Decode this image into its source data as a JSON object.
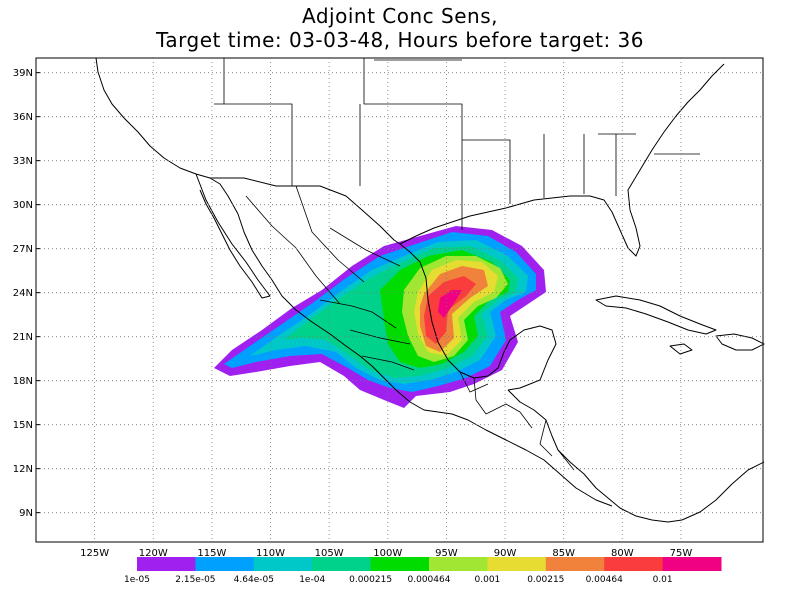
{
  "title": {
    "line1": "Adjoint Conc Sens,",
    "line2": "Target time: 03-03-48, Hours before target: 36"
  },
  "map": {
    "lon_range": [
      -130,
      -68
    ],
    "lat_range": [
      7,
      40
    ],
    "lat_ticks": [
      {
        "value": 39,
        "label": "39N"
      },
      {
        "value": 36,
        "label": "36N"
      },
      {
        "value": 33,
        "label": "33N"
      },
      {
        "value": 30,
        "label": "30N"
      },
      {
        "value": 27,
        "label": "27N"
      },
      {
        "value": 24,
        "label": "24N"
      },
      {
        "value": 21,
        "label": "21N"
      },
      {
        "value": 18,
        "label": "18N"
      },
      {
        "value": 15,
        "label": "15N"
      },
      {
        "value": 12,
        "label": "12N"
      },
      {
        "value": 9,
        "label": "9N"
      }
    ],
    "lon_ticks": [
      {
        "value": -125,
        "label": "125W"
      },
      {
        "value": -120,
        "label": "120W"
      },
      {
        "value": -115,
        "label": "115W"
      },
      {
        "value": -110,
        "label": "110W"
      },
      {
        "value": -105,
        "label": "105W"
      },
      {
        "value": -100,
        "label": "100W"
      },
      {
        "value": -95,
        "label": "95W"
      },
      {
        "value": -90,
        "label": "90W"
      },
      {
        "value": -85,
        "label": "85W"
      },
      {
        "value": -80,
        "label": "80W"
      },
      {
        "value": -75,
        "label": "75W"
      }
    ],
    "grid": "dotted",
    "field": "adjoint concentration sensitivity"
  },
  "colorbar": {
    "colors": [
      "#a020f0",
      "#00a0ff",
      "#00c8c8",
      "#00d28c",
      "#00dc00",
      "#a0e632",
      "#e6dc32",
      "#f0823c",
      "#fa3c3c",
      "#f00082"
    ],
    "labels": [
      "1e-05",
      "2.15e-05",
      "4.64e-05",
      "1e-04",
      "0.000215",
      "0.000464",
      "0.001",
      "0.00215",
      "0.00464",
      "0.01"
    ]
  }
}
